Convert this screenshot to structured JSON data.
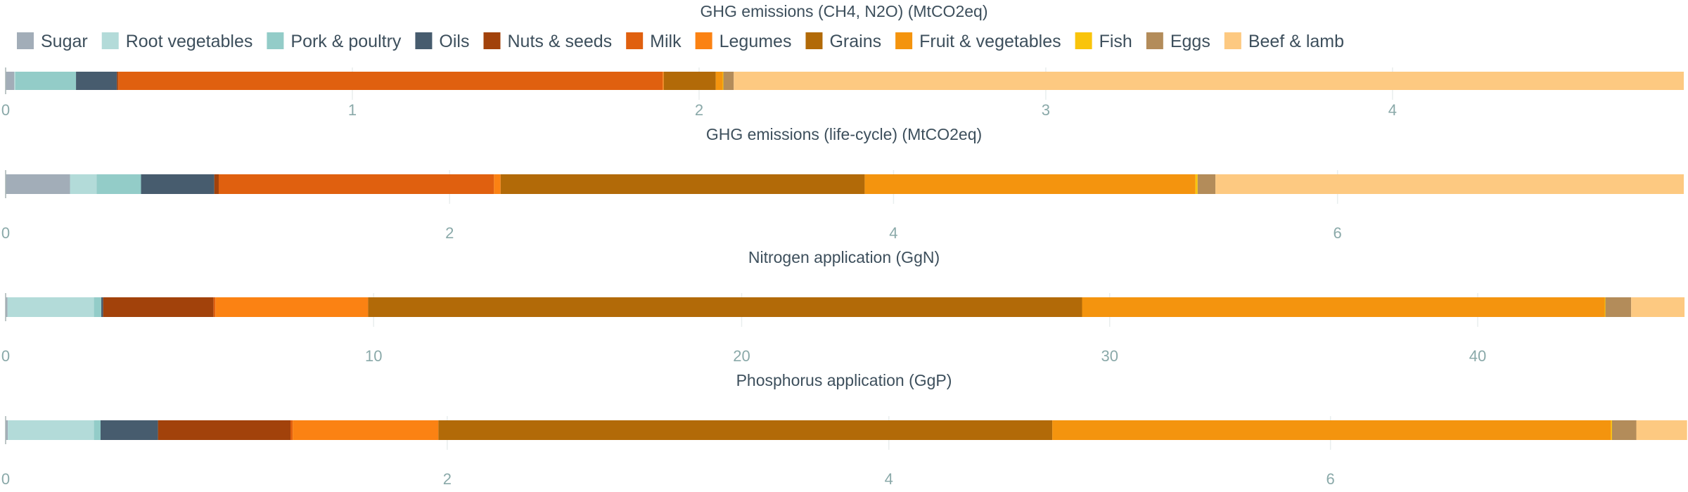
{
  "colors": {
    "Sugar": "#a2adb8",
    "Root vegetables": "#b3dbd9",
    "Pork & poultry": "#93ccc8",
    "Oils": "#475c6e",
    "Nuts & seeds": "#a2420b",
    "Milk": "#e0600f",
    "Legumes": "#fb8213",
    "Grains": "#b26a08",
    "Fruit & vegetables": "#f4940e",
    "Fish": "#f9c40b",
    "Eggs": "#b38c5a",
    "Beef & lamb": "#fdc981"
  },
  "legend": [
    "Sugar",
    "Root vegetables",
    "Pork & poultry",
    "Oils",
    "Nuts & seeds",
    "Milk",
    "Legumes",
    "Grains",
    "Fruit & vegetables",
    "Fish",
    "Eggs",
    "Beef & lamb"
  ],
  "chart_data": [
    {
      "type": "bar",
      "orientation": "horizontal-stacked",
      "title": "GHG emissions (CH4, N2O) (MtCO2eq)",
      "xlim": [
        0,
        4.84
      ],
      "ticks": [
        0,
        1,
        2,
        3,
        4
      ],
      "series": [
        {
          "name": "Sugar",
          "value": 0.025
        },
        {
          "name": "Root vegetables",
          "value": 0.003
        },
        {
          "name": "Pork & poultry",
          "value": 0.175
        },
        {
          "name": "Oils",
          "value": 0.118
        },
        {
          "name": "Nuts & seeds",
          "value": 0.004
        },
        {
          "name": "Milk",
          "value": 1.57
        },
        {
          "name": "Legumes",
          "value": 0.003
        },
        {
          "name": "Grains",
          "value": 0.15
        },
        {
          "name": "Fruit & vegetables",
          "value": 0.02
        },
        {
          "name": "Fish",
          "value": 0.002
        },
        {
          "name": "Eggs",
          "value": 0.03
        },
        {
          "name": "Beef & lamb",
          "value": 2.74
        }
      ]
    },
    {
      "type": "bar",
      "orientation": "horizontal-stacked",
      "title": "GHG emissions (life-cycle) (MtCO2eq)",
      "xlim": [
        0,
        7.56
      ],
      "ticks": [
        0,
        2,
        4,
        6
      ],
      "series": [
        {
          "name": "Sugar",
          "value": 0.29
        },
        {
          "name": "Root vegetables",
          "value": 0.12
        },
        {
          "name": "Pork & poultry",
          "value": 0.2
        },
        {
          "name": "Oils",
          "value": 0.33
        },
        {
          "name": "Nuts & seeds",
          "value": 0.02
        },
        {
          "name": "Milk",
          "value": 1.24
        },
        {
          "name": "Legumes",
          "value": 0.03
        },
        {
          "name": "Grains",
          "value": 1.64
        },
        {
          "name": "Fruit & vegetables",
          "value": 1.49
        },
        {
          "name": "Fish",
          "value": 0.01
        },
        {
          "name": "Eggs",
          "value": 0.08
        },
        {
          "name": "Beef & lamb",
          "value": 2.11
        }
      ]
    },
    {
      "type": "bar",
      "orientation": "horizontal-stacked",
      "title": "Nitrogen application (GgN)",
      "xlim": [
        0,
        45.6
      ],
      "ticks": [
        0,
        10,
        20,
        30,
        40
      ],
      "series": [
        {
          "name": "Sugar",
          "value": 0.05
        },
        {
          "name": "Root vegetables",
          "value": 2.35
        },
        {
          "name": "Pork & poultry",
          "value": 0.2
        },
        {
          "name": "Oils",
          "value": 0.05
        },
        {
          "name": "Nuts & seeds",
          "value": 3.0
        },
        {
          "name": "Milk",
          "value": 0.05
        },
        {
          "name": "Legumes",
          "value": 4.15
        },
        {
          "name": "Grains",
          "value": 19.4
        },
        {
          "name": "Fruit & vegetables",
          "value": 14.2
        },
        {
          "name": "Fish",
          "value": 0.02
        },
        {
          "name": "Eggs",
          "value": 0.7
        },
        {
          "name": "Beef & lamb",
          "value": 1.45
        }
      ]
    },
    {
      "type": "bar",
      "orientation": "horizontal-stacked",
      "title": "Phosphorus application (GgP)",
      "xlim": [
        0,
        7.6
      ],
      "ticks": [
        0,
        2,
        4,
        6
      ],
      "series": [
        {
          "name": "Sugar",
          "value": 0.01
        },
        {
          "name": "Root vegetables",
          "value": 0.39
        },
        {
          "name": "Pork & poultry",
          "value": 0.03
        },
        {
          "name": "Oils",
          "value": 0.26
        },
        {
          "name": "Nuts & seeds",
          "value": 0.6
        },
        {
          "name": "Milk",
          "value": 0.01
        },
        {
          "name": "Legumes",
          "value": 0.66
        },
        {
          "name": "Grains",
          "value": 2.78
        },
        {
          "name": "Fruit & vegetables",
          "value": 2.53
        },
        {
          "name": "Fish",
          "value": 0.005
        },
        {
          "name": "Eggs",
          "value": 0.11
        },
        {
          "name": "Beef & lamb",
          "value": 0.23
        }
      ]
    }
  ]
}
